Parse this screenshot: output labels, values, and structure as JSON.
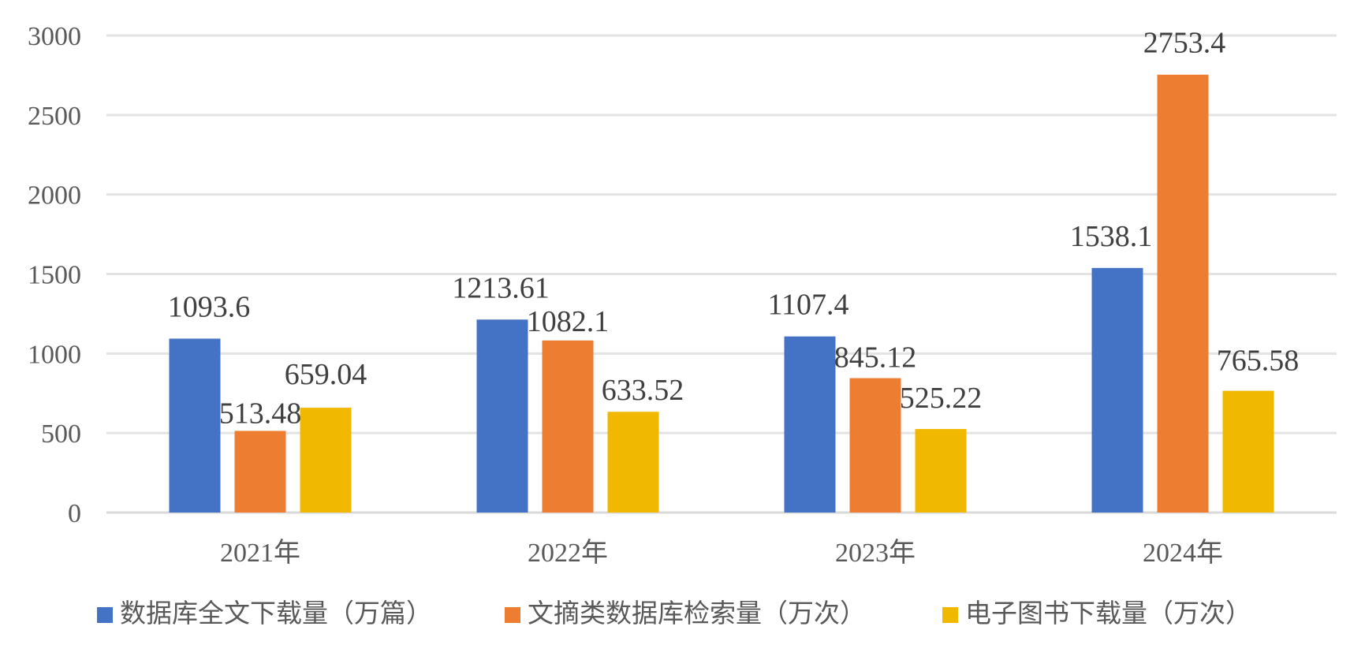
{
  "chart_data": {
    "type": "bar",
    "categories": [
      "2021年",
      "2022年",
      "2023年",
      "2024年"
    ],
    "series": [
      {
        "name": "数据库全文下载量（万篇）",
        "color": "#4472C4",
        "values": [
          1093.6,
          1213.61,
          1107.4,
          1538.1
        ],
        "labels": [
          "1093.6",
          "1213.61",
          "1107.4",
          "1538.1"
        ]
      },
      {
        "name": "文摘类数据库检索量（万次）",
        "color": "#ED7D31",
        "values": [
          513.48,
          1082.1,
          845.12,
          2753.4
        ],
        "labels": [
          "513.48",
          "1082.1",
          "845.12",
          "2753.4"
        ]
      },
      {
        "name": "电子图书下载量（万次）",
        "color": "#F0B800",
        "values": [
          659.04,
          633.52,
          525.22,
          765.58
        ],
        "labels": [
          "659.04",
          "633.52",
          "525.22",
          "765.58"
        ]
      }
    ],
    "yticks": [
      "0",
      "500",
      "1000",
      "1500",
      "2000",
      "2500",
      "3000"
    ],
    "ylim": [
      0,
      3000
    ],
    "grid": true,
    "legend": "bottom"
  }
}
